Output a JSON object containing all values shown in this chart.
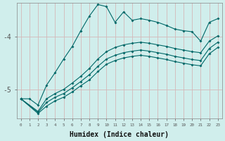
{
  "xlabel": "Humidex (Indice chaleur)",
  "bg_color": "#d0eeec",
  "line_color": "#006868",
  "grid_v_color": "#d4b8b8",
  "grid_h_color": "#d4b8b8",
  "xlim": [
    -0.5,
    23.5
  ],
  "ylim": [
    -5.55,
    -3.35
  ],
  "yticks": [
    -5,
    -4
  ],
  "xticks": [
    0,
    1,
    2,
    3,
    4,
    5,
    6,
    7,
    8,
    9,
    10,
    11,
    12,
    13,
    14,
    15,
    16,
    17,
    18,
    19,
    20,
    21,
    22,
    23
  ],
  "line1_x": [
    0,
    1,
    2,
    3,
    4,
    5,
    6,
    7,
    8,
    9,
    10,
    11,
    12,
    13,
    14,
    15,
    16,
    17,
    18,
    19,
    20,
    21,
    22,
    23
  ],
  "line1_y": [
    -5.18,
    -5.18,
    -5.3,
    -4.92,
    -4.68,
    -4.42,
    -4.18,
    -3.88,
    -3.6,
    -3.38,
    -3.42,
    -3.72,
    -3.52,
    -3.68,
    -3.65,
    -3.68,
    -3.72,
    -3.78,
    -3.85,
    -3.88,
    -3.9,
    -4.08,
    -3.72,
    -3.65
  ],
  "line2_x": [
    0,
    2,
    3,
    4,
    5,
    6,
    7,
    8,
    9,
    10,
    11,
    12,
    13,
    14,
    15,
    16,
    17,
    18,
    19,
    20,
    21,
    22,
    23
  ],
  "line2_y": [
    -5.18,
    -5.42,
    -5.18,
    -5.08,
    -5.0,
    -4.88,
    -4.75,
    -4.6,
    -4.42,
    -4.28,
    -4.2,
    -4.15,
    -4.12,
    -4.1,
    -4.12,
    -4.15,
    -4.18,
    -4.22,
    -4.25,
    -4.28,
    -4.3,
    -4.08,
    -3.98
  ],
  "line3_x": [
    0,
    2,
    3,
    4,
    5,
    6,
    7,
    8,
    9,
    10,
    11,
    12,
    13,
    14,
    15,
    16,
    17,
    18,
    19,
    20,
    21,
    22,
    23
  ],
  "line3_y": [
    -5.18,
    -5.44,
    -5.25,
    -5.15,
    -5.08,
    -4.97,
    -4.85,
    -4.72,
    -4.56,
    -4.42,
    -4.35,
    -4.3,
    -4.27,
    -4.25,
    -4.27,
    -4.3,
    -4.33,
    -4.37,
    -4.4,
    -4.43,
    -4.45,
    -4.22,
    -4.1
  ],
  "line4_x": [
    0,
    2,
    3,
    4,
    5,
    6,
    7,
    8,
    9,
    10,
    11,
    12,
    13,
    14,
    15,
    16,
    17,
    18,
    19,
    20,
    21,
    22,
    23
  ],
  "line4_y": [
    -5.18,
    -5.46,
    -5.32,
    -5.22,
    -5.15,
    -5.05,
    -4.93,
    -4.82,
    -4.66,
    -4.52,
    -4.45,
    -4.4,
    -4.37,
    -4.35,
    -4.37,
    -4.4,
    -4.43,
    -4.47,
    -4.5,
    -4.53,
    -4.55,
    -4.32,
    -4.2
  ]
}
